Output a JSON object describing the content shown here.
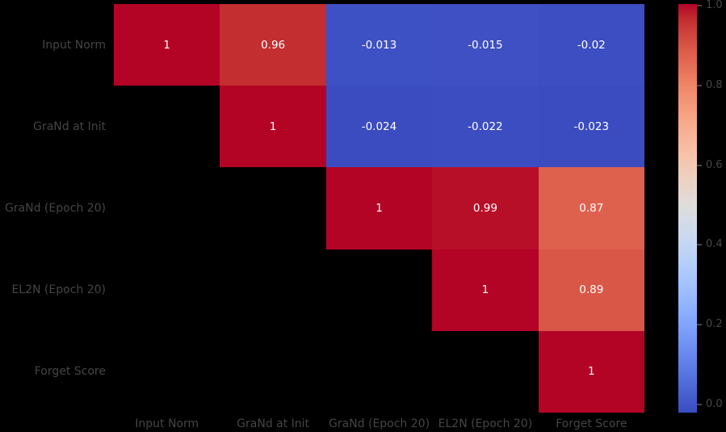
{
  "figure": {
    "background": "#000000",
    "axis_text_color": "#454545",
    "annotation_text_color": "#ffffff"
  },
  "chart_data": {
    "type": "heatmap",
    "title": "",
    "xlabel": "",
    "ylabel": "",
    "labels": [
      "Input Norm",
      "GraNd at Init",
      "GraNd (Epoch 20)",
      "EL2N (Epoch 20)",
      "Forget Score"
    ],
    "matrix": [
      [
        1,
        0.96,
        -0.013,
        -0.015,
        -0.02
      ],
      [
        null,
        1,
        -0.024,
        -0.022,
        -0.023
      ],
      [
        null,
        null,
        1,
        0.99,
        0.87
      ],
      [
        null,
        null,
        null,
        1,
        0.89
      ],
      [
        null,
        null,
        null,
        null,
        1
      ]
    ],
    "mask": "lower-triangle-hidden",
    "colormap": "coolwarm",
    "vmin": -0.024,
    "vmax": 1.0,
    "grid": false,
    "legend": false,
    "colorbar": {
      "position": "right",
      "ticks": [
        1.0,
        0.8,
        0.6,
        0.4,
        0.2,
        0.0
      ],
      "tick_labels": [
        "1.0",
        "0.8",
        "0.6",
        "0.4",
        "0.2",
        "0.0"
      ]
    }
  }
}
